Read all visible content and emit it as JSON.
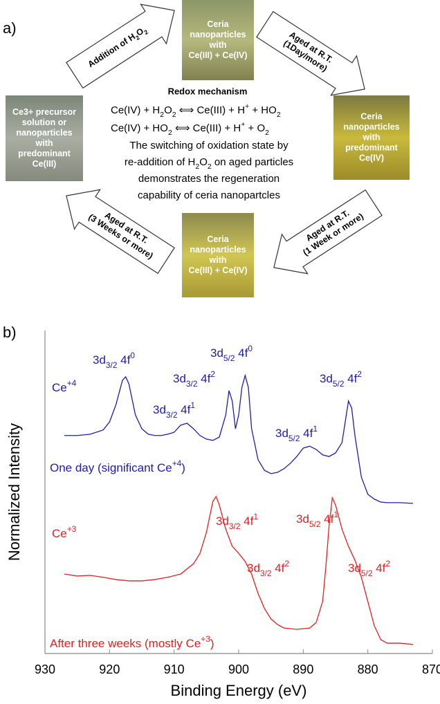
{
  "diagram": {
    "label": "a)",
    "vials": [
      {
        "lines": [
          "Ceria",
          "nanoparticles",
          "with",
          "Ce(III) + Ce(IV)"
        ]
      },
      {
        "lines": [
          "Ceria",
          "nanoparticles",
          "with",
          "predominant",
          "Ce(IV)"
        ]
      },
      {
        "lines": [
          "Ceria",
          "nanoparticles",
          "with",
          "Ce(III) + Ce(IV)"
        ]
      },
      {
        "lines": [
          "Ce3+ precursor",
          "solution or",
          "nanoparticles",
          "with",
          "predominant",
          "Ce(III)"
        ]
      }
    ],
    "arrows": [
      {
        "lines": [
          [
            {
              "text": "Addition of H"
            },
            {
              "text": "2",
              "shift": "sub"
            },
            {
              "text": "O"
            },
            {
              "text": "2",
              "shift": "sub"
            }
          ]
        ]
      },
      {
        "lines": [
          [
            {
              "text": "Aged at R.T."
            }
          ],
          [
            {
              "text": "(1Day/more)"
            }
          ]
        ]
      },
      {
        "lines": [
          [
            {
              "text": "Aged at R.T."
            }
          ],
          [
            {
              "text": "(1 Week or more)"
            }
          ]
        ]
      },
      {
        "lines": [
          [
            {
              "text": "Aged at R.T."
            }
          ],
          [
            {
              "text": "(3 Weeks or more)"
            }
          ]
        ]
      }
    ],
    "mechanism": {
      "title": "Redox mechanism",
      "lines": [
        [
          {
            "text": "Ce(IV) + H"
          },
          {
            "text": "2",
            "shift": "sub"
          },
          {
            "text": "O"
          },
          {
            "text": "2",
            "shift": "sub"
          },
          {
            "text": " ⟺ Ce(III) + H"
          },
          {
            "text": "+",
            "shift": "super"
          },
          {
            "text": " + HO"
          },
          {
            "text": "2",
            "shift": "sub"
          }
        ],
        [
          {
            "text": "Ce(IV) + HO"
          },
          {
            "text": "2",
            "shift": "sub"
          },
          {
            "text": " ⟺ Ce(III) + H"
          },
          {
            "text": "+",
            "shift": "super"
          },
          {
            "text": " + O"
          },
          {
            "text": "2",
            "shift": "sub"
          }
        ],
        [
          {
            "text": "The switching of oxidation state by"
          }
        ],
        [
          {
            "text": "re-addition of H"
          },
          {
            "text": "2",
            "shift": "sub"
          },
          {
            "text": "O"
          },
          {
            "text": "2",
            "shift": "sub"
          },
          {
            "text": " on aged particles"
          }
        ],
        [
          {
            "text": "demonstrates the regeneration"
          }
        ],
        [
          {
            "text": "capability of ceria nanopartcles"
          }
        ]
      ]
    }
  },
  "chart_data": {
    "type": "line",
    "label": "b)",
    "x_label": "Binding Energy (eV)",
    "y_label": "Normalized Intensity",
    "xlim": [
      930,
      870
    ],
    "xticks": [
      930,
      920,
      910,
      900,
      890,
      880,
      870
    ],
    "ylim": [
      0,
      1
    ],
    "series": [
      {
        "name": "One day",
        "color": "#1c1cb0",
        "x": [
          927,
          925,
          923,
          921,
          920,
          919,
          918,
          917.5,
          917,
          916,
          915,
          914,
          913,
          912,
          911,
          910,
          909,
          908,
          907,
          906,
          905,
          904,
          903,
          902,
          901.5,
          901,
          900.5,
          900,
          899.5,
          899,
          898.5,
          898,
          897,
          896,
          895,
          894,
          893,
          892,
          891,
          890,
          889,
          888,
          887,
          886,
          885,
          884,
          883.5,
          883,
          882.5,
          882,
          881,
          880,
          879,
          878,
          877,
          875,
          873
        ],
        "values": [
          0.675,
          0.675,
          0.679,
          0.692,
          0.717,
          0.771,
          0.846,
          0.857,
          0.835,
          0.739,
          0.696,
          0.679,
          0.675,
          0.675,
          0.679,
          0.685,
          0.707,
          0.713,
          0.696,
          0.675,
          0.664,
          0.66,
          0.67,
          0.739,
          0.814,
          0.782,
          0.696,
          0.739,
          0.824,
          0.861,
          0.824,
          0.696,
          0.6,
          0.567,
          0.557,
          0.561,
          0.572,
          0.589,
          0.61,
          0.636,
          0.642,
          0.632,
          0.615,
          0.61,
          0.621,
          0.653,
          0.717,
          0.782,
          0.76,
          0.675,
          0.546,
          0.493,
          0.478,
          0.469,
          0.467,
          0.467,
          0.465
        ]
      },
      {
        "name": "After three weeks",
        "color": "#e41f1f",
        "x": [
          927,
          925,
          923,
          921,
          919,
          917,
          915,
          913,
          911,
          909,
          907,
          906,
          905,
          904,
          903.5,
          903,
          902,
          901,
          900,
          899,
          898,
          897,
          896,
          895,
          894,
          893,
          891,
          889,
          888,
          887,
          886.5,
          886,
          885.5,
          885,
          884,
          883,
          882,
          881,
          880,
          879,
          878,
          877,
          875,
          873
        ],
        "values": [
          0.246,
          0.24,
          0.242,
          0.236,
          0.229,
          0.225,
          0.225,
          0.229,
          0.236,
          0.246,
          0.278,
          0.31,
          0.375,
          0.471,
          0.486,
          0.46,
          0.385,
          0.332,
          0.31,
          0.285,
          0.246,
          0.186,
          0.139,
          0.107,
          0.09,
          0.079,
          0.075,
          0.079,
          0.096,
          0.161,
          0.268,
          0.396,
          0.482,
          0.46,
          0.385,
          0.332,
          0.289,
          0.236,
          0.161,
          0.086,
          0.043,
          0.032,
          0.032,
          0.028
        ]
      }
    ],
    "annotations": [
      {
        "color": "#1c1cb0",
        "segments": [
          {
            "text": "3d"
          },
          {
            "text": "3/2",
            "shift": "sub"
          },
          {
            "text": " 4f"
          },
          {
            "text": "0",
            "shift": "super"
          }
        ]
      },
      {
        "color": "#1c1cb0",
        "segments": [
          {
            "text": "Ce"
          },
          {
            "text": "+4",
            "shift": "super"
          }
        ]
      },
      {
        "color": "#1c1cb0",
        "segments": [
          {
            "text": "3d"
          },
          {
            "text": "3/2",
            "shift": "sub"
          },
          {
            "text": " 4f"
          },
          {
            "text": "2",
            "shift": "super"
          }
        ]
      },
      {
        "color": "#1c1cb0",
        "segments": [
          {
            "text": "3d"
          },
          {
            "text": "5/2",
            "shift": "sub"
          },
          {
            "text": " 4f"
          },
          {
            "text": "0",
            "shift": "super"
          }
        ]
      },
      {
        "color": "#1c1cb0",
        "segments": [
          {
            "text": "3d"
          },
          {
            "text": "3/2",
            "shift": "sub"
          },
          {
            "text": " 4f"
          },
          {
            "text": "1",
            "shift": "super"
          }
        ]
      },
      {
        "color": "#1c1cb0",
        "segments": [
          {
            "text": "3d"
          },
          {
            "text": "5/2",
            "shift": "sub"
          },
          {
            "text": " 4f"
          },
          {
            "text": "2",
            "shift": "super"
          }
        ]
      },
      {
        "color": "#1c1cb0",
        "segments": [
          {
            "text": "3d"
          },
          {
            "text": "5/2",
            "shift": "sub"
          },
          {
            "text": " 4f"
          },
          {
            "text": "1",
            "shift": "super"
          }
        ]
      },
      {
        "color": "#1c1cb0",
        "segments": [
          {
            "text": "One day (significant Ce"
          },
          {
            "text": "+4",
            "shift": "super"
          },
          {
            "text": ")"
          }
        ]
      },
      {
        "color": "#e41f1f",
        "segments": [
          {
            "text": "Ce"
          },
          {
            "text": "+3",
            "shift": "super"
          }
        ]
      },
      {
        "color": "#e41f1f",
        "segments": [
          {
            "text": "3d"
          },
          {
            "text": "3/2",
            "shift": "sub"
          },
          {
            "text": " 4f"
          },
          {
            "text": "1",
            "shift": "super"
          }
        ]
      },
      {
        "color": "#e41f1f",
        "segments": [
          {
            "text": "3d"
          },
          {
            "text": "3/2",
            "shift": "sub"
          },
          {
            "text": " 4f"
          },
          {
            "text": "2",
            "shift": "super"
          }
        ]
      },
      {
        "color": "#e41f1f",
        "segments": [
          {
            "text": "3d"
          },
          {
            "text": "5/2",
            "shift": "sub"
          },
          {
            "text": " 4f"
          },
          {
            "text": "1",
            "shift": "super"
          }
        ]
      },
      {
        "color": "#e41f1f",
        "segments": [
          {
            "text": "3d"
          },
          {
            "text": "5/2",
            "shift": "sub"
          },
          {
            "text": " 4f"
          },
          {
            "text": "2",
            "shift": "super"
          }
        ]
      },
      {
        "color": "#e41f1f",
        "segments": [
          {
            "text": "After three weeks (mostly Ce"
          },
          {
            "text": "+3",
            "shift": "super"
          },
          {
            "text": ")"
          }
        ]
      }
    ]
  }
}
